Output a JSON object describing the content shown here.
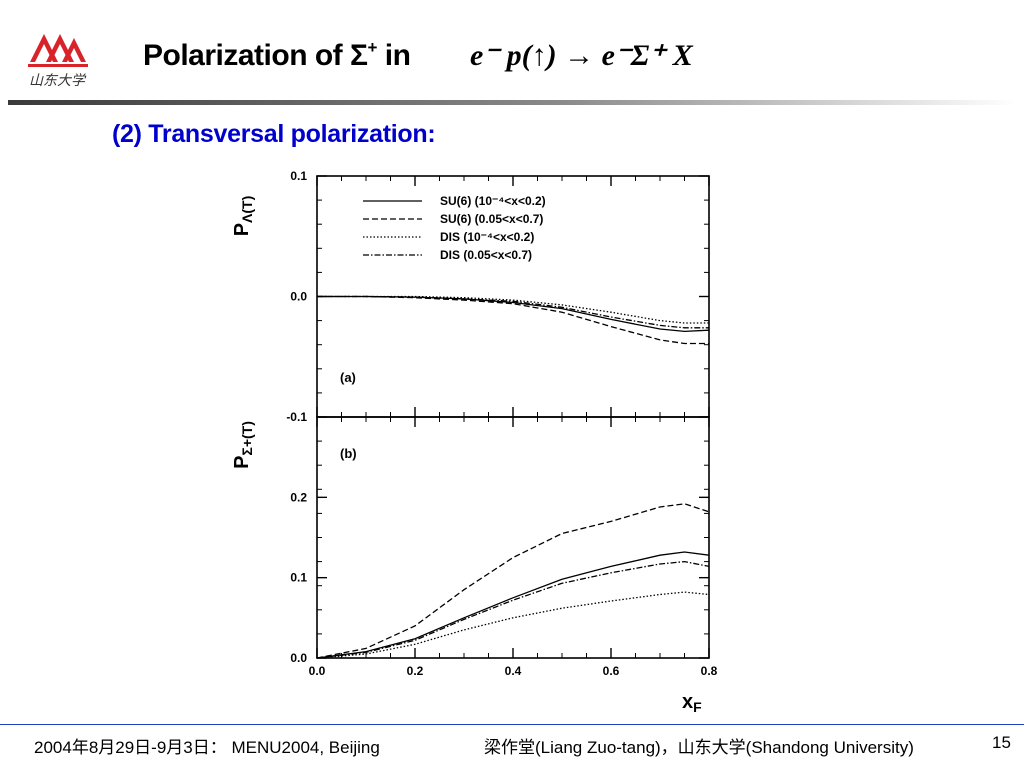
{
  "header": {
    "logo_text": "山东大学",
    "title_main": "Polarization of ",
    "title_sigma": "Σ",
    "title_sup": "+",
    "title_in": " in",
    "formula_text": "e⁻ p(↑) → e⁻Σ⁺ X"
  },
  "subtitle": "(2) Transversal polarization:",
  "footer": {
    "date_event": "2004年8月29日-9月3日： MENU2004, Beijing",
    "author": "梁作堂(Liang Zuo-tang)，山东大学(Shandong University)",
    "page": "15"
  },
  "colors": {
    "accent": "#0000cc",
    "logo_red": "#d8232a",
    "rule": "#2040c0"
  },
  "chart_data": [
    {
      "type": "line",
      "panel": "(a)",
      "ylabel": "PΛ(T)",
      "xlim": [
        0.0,
        0.8
      ],
      "ylim": [
        -0.1,
        0.1
      ],
      "yticks": [
        "0.1",
        "0.0",
        "-0.1"
      ],
      "grid": false,
      "legend_position": "top-left",
      "series": [
        {
          "name": "SU(6) (10⁻⁴<x<0.2)",
          "style": "solid",
          "x": [
            0.0,
            0.1,
            0.2,
            0.3,
            0.4,
            0.5,
            0.6,
            0.7,
            0.75,
            0.8
          ],
          "y": [
            0.0,
            0.0,
            -0.0005,
            -0.002,
            -0.005,
            -0.01,
            -0.019,
            -0.027,
            -0.029,
            -0.028
          ]
        },
        {
          "name": "SU(6) (0.05<x<0.7)",
          "style": "dashed",
          "x": [
            0.0,
            0.1,
            0.2,
            0.3,
            0.4,
            0.5,
            0.6,
            0.7,
            0.75,
            0.8
          ],
          "y": [
            0.0,
            0.0,
            -0.001,
            -0.003,
            -0.006,
            -0.013,
            -0.025,
            -0.036,
            -0.039,
            -0.039
          ]
        },
        {
          "name": "DIS   (10⁻⁴<x<0.2)",
          "style": "dotted",
          "x": [
            0.0,
            0.1,
            0.2,
            0.3,
            0.4,
            0.5,
            0.6,
            0.7,
            0.75,
            0.8
          ],
          "y": [
            0.0,
            0.0,
            0.0,
            -0.001,
            -0.003,
            -0.007,
            -0.013,
            -0.02,
            -0.022,
            -0.022
          ]
        },
        {
          "name": "DIS   (0.05<x<0.7)",
          "style": "dashdot",
          "x": [
            0.0,
            0.1,
            0.2,
            0.3,
            0.4,
            0.5,
            0.6,
            0.7,
            0.75,
            0.8
          ],
          "y": [
            0.0,
            0.0,
            -0.0005,
            -0.002,
            -0.004,
            -0.009,
            -0.017,
            -0.024,
            -0.026,
            -0.026
          ]
        }
      ]
    },
    {
      "type": "line",
      "panel": "(b)",
      "ylabel": "PΣ+(T)",
      "xlabel": "xF",
      "xlim": [
        0.0,
        0.8
      ],
      "ylim": [
        0.0,
        0.3
      ],
      "xticks": [
        "0.0",
        "0.2",
        "0.4",
        "0.6",
        "0.8"
      ],
      "yticks": [
        "0.0",
        "0.1",
        "0.2"
      ],
      "grid": false,
      "series": [
        {
          "name": "SU(6) (10⁻⁴<x<0.2)",
          "style": "solid",
          "x": [
            0.0,
            0.1,
            0.2,
            0.3,
            0.4,
            0.5,
            0.6,
            0.7,
            0.75,
            0.8
          ],
          "y": [
            0.0,
            0.008,
            0.024,
            0.05,
            0.075,
            0.098,
            0.114,
            0.128,
            0.132,
            0.128
          ]
        },
        {
          "name": "SU(6) (0.05<x<0.7)",
          "style": "dashed",
          "x": [
            0.0,
            0.1,
            0.2,
            0.3,
            0.4,
            0.5,
            0.6,
            0.7,
            0.75,
            0.8
          ],
          "y": [
            0.0,
            0.012,
            0.04,
            0.085,
            0.125,
            0.155,
            0.17,
            0.188,
            0.192,
            0.182
          ]
        },
        {
          "name": "DIS   (10⁻⁴<x<0.2)",
          "style": "dotted",
          "x": [
            0.0,
            0.1,
            0.2,
            0.3,
            0.4,
            0.5,
            0.6,
            0.7,
            0.75,
            0.8
          ],
          "y": [
            0.0,
            0.005,
            0.017,
            0.035,
            0.05,
            0.062,
            0.071,
            0.079,
            0.082,
            0.079
          ]
        },
        {
          "name": "DIS   (0.05<x<0.7)",
          "style": "dashdot",
          "x": [
            0.0,
            0.1,
            0.2,
            0.3,
            0.4,
            0.5,
            0.6,
            0.7,
            0.75,
            0.8
          ],
          "y": [
            0.0,
            0.007,
            0.022,
            0.048,
            0.072,
            0.093,
            0.106,
            0.117,
            0.12,
            0.114
          ]
        }
      ]
    }
  ]
}
